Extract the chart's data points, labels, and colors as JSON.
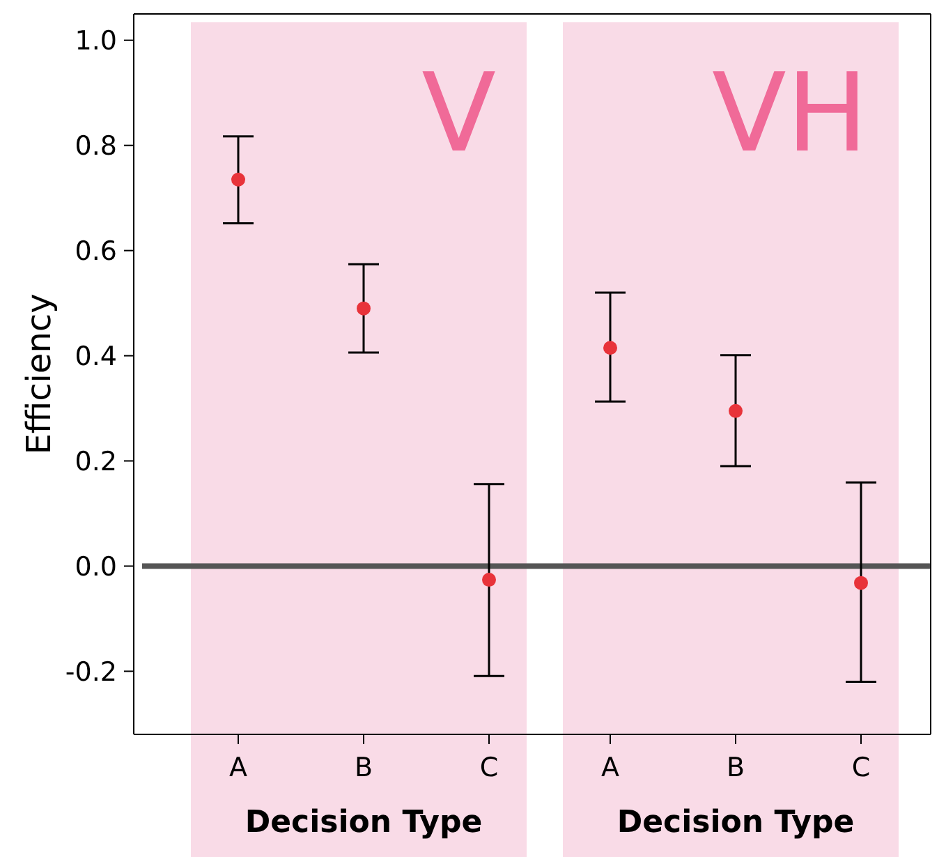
{
  "chart_data": [
    {
      "type": "scatter",
      "title": "V",
      "xlabel": "Decision Type",
      "ylabel": "Efficiency",
      "categories": [
        "A",
        "B",
        "C"
      ],
      "series": [
        {
          "color": "#e8333a",
          "values": [
            0.735,
            0.49,
            -0.026
          ],
          "errors": [
            [
              0.652,
              0.817
            ],
            [
              0.406,
              0.574
            ],
            [
              -0.209,
              0.156
            ]
          ]
        }
      ],
      "marker": "circle",
      "ylim": [
        -0.32,
        1.05
      ],
      "yticks": [
        {
          "value": -0.2,
          "label": "-0.2"
        },
        {
          "value": 0,
          "label": "0.0"
        },
        {
          "value": 0.2,
          "label": "0.2"
        },
        {
          "value": 0.4,
          "label": "0.4"
        },
        {
          "value": 0.6,
          "label": "0.6"
        },
        {
          "value": 0.8,
          "label": "0.8"
        },
        {
          "value": 1,
          "label": "1.0"
        }
      ],
      "ref_lines": [
        {
          "axis": "y",
          "value": 0,
          "color": "#555555"
        }
      ]
    },
    {
      "type": "scatter",
      "title": "VH",
      "xlabel": "Decision Type",
      "categories": [
        "A",
        "B",
        "C"
      ],
      "series": [
        {
          "color": "#e8333a",
          "values": [
            0.415,
            0.295,
            -0.032
          ],
          "errors": [
            [
              0.313,
              0.52
            ],
            [
              0.19,
              0.401
            ],
            [
              -0.22,
              0.159
            ]
          ]
        }
      ],
      "marker": "circle",
      "ylim": [
        -0.32,
        1.05
      ],
      "tick_labels": "x",
      "ref_lines": [
        {
          "axis": "y",
          "value": 0,
          "color": "#555555"
        }
      ]
    }
  ]
}
